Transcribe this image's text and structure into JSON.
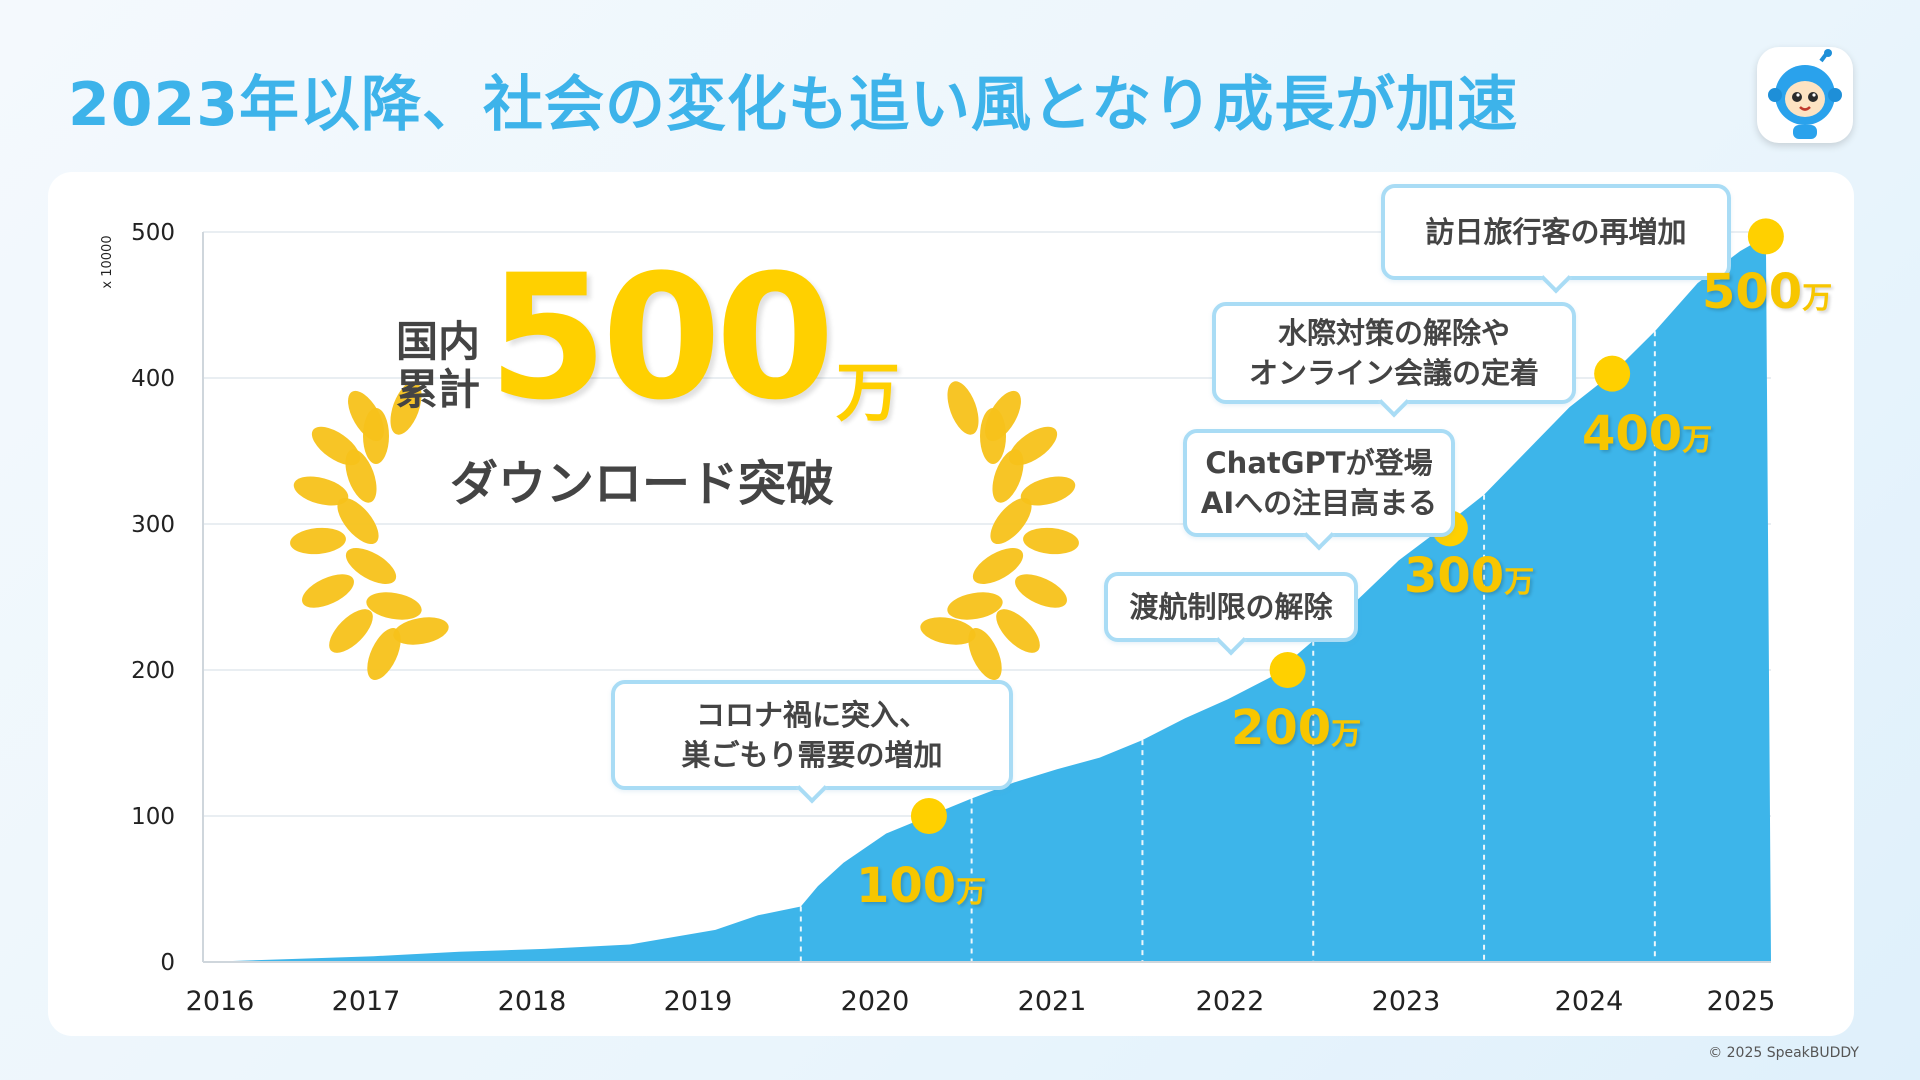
{
  "page": {
    "title": "2023年以降、社会の変化も追い風となり成長が加速",
    "footer": "© 2025 SpeakBUDDY",
    "accent_color": "#3db3ea",
    "highlight_color": "#ffd000",
    "app_icon": "robot-mascot-icon"
  },
  "badge": {
    "prefix_line1": "国内",
    "prefix_line2": "累計",
    "number": "500",
    "unit": "万",
    "subtitle": "ダウンロード突破",
    "icon": "laurel-wreath-icon"
  },
  "chart_data": {
    "type": "area",
    "y_multiplier_label": "x 10000",
    "ylim": [
      0,
      500
    ],
    "y_ticks": [
      0,
      100,
      200,
      300,
      400,
      500
    ],
    "x_ticks": [
      "2016",
      "2017",
      "2018",
      "2019",
      "2020",
      "2021",
      "2022",
      "2023",
      "2024",
      "2025"
    ],
    "grid": true,
    "fill_color": "#3db5ea",
    "series": [
      {
        "x": [
          2016.0,
          2016.5,
          2017.0,
          2017.5,
          2018.0,
          2018.5,
          2019.0,
          2019.25,
          2019.5,
          2019.6,
          2019.75,
          2020.0,
          2020.25,
          2020.5,
          2020.75,
          2021.0,
          2021.25,
          2021.5,
          2021.75,
          2022.0,
          2022.25,
          2022.5,
          2022.75,
          2023.0,
          2023.25,
          2023.5,
          2023.75,
          2024.0,
          2024.25,
          2024.5,
          2024.75,
          2025.0,
          2025.15,
          2025.18
        ],
        "values": [
          0,
          2,
          4,
          7,
          9,
          12,
          22,
          32,
          38,
          52,
          68,
          88,
          100,
          112,
          123,
          132,
          140,
          152,
          167,
          180,
          195,
          220,
          247,
          275,
          297,
          320,
          350,
          380,
          403,
          432,
          465,
          487,
          497,
          0
        ]
      }
    ]
  },
  "milestones": [
    {
      "label": "100",
      "unit": "万",
      "x": 2020.25,
      "y": 100
    },
    {
      "label": "200",
      "unit": "万",
      "x": 2022.35,
      "y": 200
    },
    {
      "label": "300",
      "unit": "万",
      "x": 2023.3,
      "y": 297
    },
    {
      "label": "400",
      "unit": "万",
      "x": 2024.25,
      "y": 403
    },
    {
      "label": "500",
      "unit": "万",
      "x": 2025.15,
      "y": 497
    }
  ],
  "callouts": [
    {
      "text": "コロナ禍に突入、\n巣ごもり需要の増加"
    },
    {
      "text": "渡航制限の解除"
    },
    {
      "text": "ChatGPTが登場\nAIへの注目高まる"
    },
    {
      "text": "水際対策の解除や\nオンライン会議の定着"
    },
    {
      "text": "訪日旅行客の再増加"
    }
  ],
  "year_separators": [
    2019.5,
    2020.5,
    2021.5,
    2022.5,
    2023.5,
    2024.5
  ]
}
